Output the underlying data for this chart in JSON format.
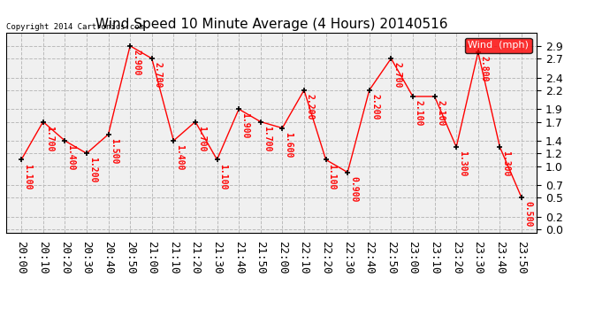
{
  "title": "Wind Speed 10 Minute Average (4 Hours) 20140516",
  "copyright_text": "Copyright 2014 Cartronics.com",
  "legend_label": "Wind  (mph)",
  "x_labels": [
    "20:00",
    "20:10",
    "20:20",
    "20:30",
    "20:40",
    "20:50",
    "21:00",
    "21:10",
    "21:20",
    "21:30",
    "21:40",
    "21:50",
    "22:00",
    "22:10",
    "22:20",
    "22:30",
    "22:40",
    "22:50",
    "23:00",
    "23:10",
    "23:20",
    "23:30",
    "23:40",
    "23:50"
  ],
  "y_values": [
    1.1,
    1.7,
    1.4,
    1.2,
    1.5,
    2.9,
    2.7,
    1.4,
    1.7,
    1.1,
    1.9,
    1.7,
    1.6,
    2.2,
    1.1,
    0.9,
    2.2,
    2.7,
    2.1,
    2.1,
    1.3,
    2.8,
    1.3,
    0.5
  ],
  "ylim": [
    -0.05,
    3.1
  ],
  "yticks": [
    0.0,
    0.2,
    0.5,
    0.7,
    1.0,
    1.2,
    1.4,
    1.7,
    1.9,
    2.2,
    2.4,
    2.7,
    2.9
  ],
  "line_color": "red",
  "marker_color": "black",
  "label_color": "red",
  "bg_color": "#ffffff",
  "plot_bg_color": "#f0f0f0",
  "grid_color": "#bbbbbb",
  "title_fontsize": 11,
  "label_fontsize": 7,
  "tick_fontsize": 9,
  "legend_bg": "red",
  "legend_text_color": "white",
  "copyright_fontsize": 6.5
}
